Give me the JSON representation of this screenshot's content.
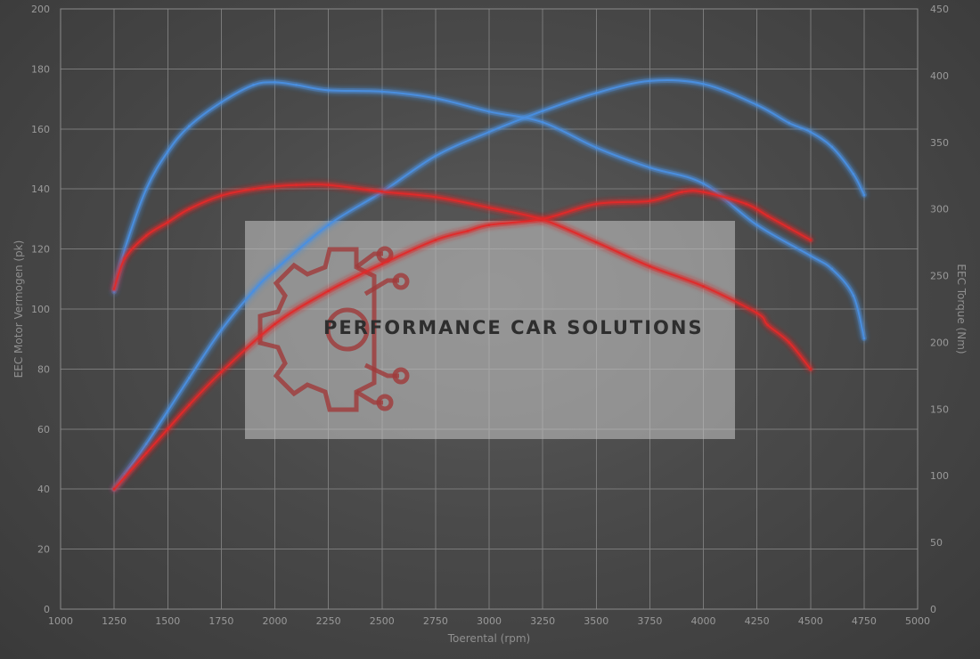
{
  "chart_data": {
    "type": "line",
    "xlabel": "Toerental (rpm)",
    "ylabel_left": "EEC Motor Vermogen (pk)",
    "ylabel_right": "EEC Torque (Nm)",
    "xlim": [
      1000,
      5000
    ],
    "ylim_left": [
      0,
      200
    ],
    "ylim_right": [
      0,
      450
    ],
    "x_ticks": [
      1000,
      1250,
      1500,
      1750,
      2000,
      2250,
      2500,
      2750,
      3000,
      3250,
      3500,
      3750,
      4000,
      4250,
      4500,
      4750,
      5000
    ],
    "y_left_ticks": [
      0,
      20,
      40,
      60,
      80,
      100,
      120,
      140,
      160,
      180,
      200
    ],
    "y_right_ticks": [
      0,
      50,
      100,
      150,
      200,
      250,
      300,
      350,
      400,
      450
    ],
    "grid": true,
    "colors": {
      "blue": "#4a8fe0",
      "red": "#e02a2a"
    },
    "series": [
      {
        "color": "blue",
        "axis": "left",
        "kind": "power",
        "x": [
          1250,
          1300,
          1400,
          1500,
          1600,
          1750,
          1900,
          2000,
          2250,
          2500,
          2750,
          3000,
          3250,
          3500,
          3750,
          4000,
          4250,
          4400,
          4500,
          4600,
          4700,
          4750
        ],
        "y": [
          40,
          45,
          55,
          66,
          77,
          93,
          106,
          113,
          128,
          139,
          151,
          159,
          166,
          172,
          176,
          175,
          168,
          162,
          159,
          154,
          145,
          138
        ]
      },
      {
        "color": "blue",
        "axis": "right",
        "kind": "torque",
        "x": [
          1250,
          1300,
          1400,
          1500,
          1600,
          1750,
          1900,
          2000,
          2100,
          2250,
          2500,
          2750,
          3000,
          3250,
          3500,
          3750,
          4000,
          4250,
          4500,
          4600,
          4700,
          4750
        ],
        "y": [
          238,
          270,
          315,
          343,
          362,
          380,
          393,
          395,
          393,
          389,
          388,
          383,
          373,
          365,
          346,
          331,
          319,
          288,
          265,
          255,
          235,
          203
        ]
      },
      {
        "color": "red",
        "axis": "left",
        "kind": "power",
        "x": [
          1250,
          1300,
          1400,
          1500,
          1600,
          1750,
          2000,
          2250,
          2500,
          2750,
          2900,
          3000,
          3250,
          3500,
          3750,
          3900,
          4000,
          4200,
          4300,
          4400,
          4500
        ],
        "y": [
          40,
          44,
          52,
          60,
          68,
          79,
          95,
          106,
          115,
          123,
          126,
          128,
          130,
          135,
          136,
          139,
          139,
          135,
          131,
          127,
          123
        ]
      },
      {
        "color": "red",
        "axis": "right",
        "kind": "torque",
        "x": [
          1250,
          1300,
          1400,
          1500,
          1600,
          1750,
          1900,
          2000,
          2100,
          2250,
          2500,
          2750,
          3000,
          3250,
          3500,
          3750,
          4000,
          4250,
          4300,
          4400,
          4500
        ],
        "y": [
          240,
          263,
          280,
          290,
          300,
          310,
          315,
          317,
          318,
          318,
          313,
          309,
          301,
          292,
          275,
          257,
          242,
          222,
          213,
          200,
          180
        ]
      }
    ]
  },
  "watermark": {
    "text": "PERFORMANCE CAR SOLUTIONS"
  }
}
